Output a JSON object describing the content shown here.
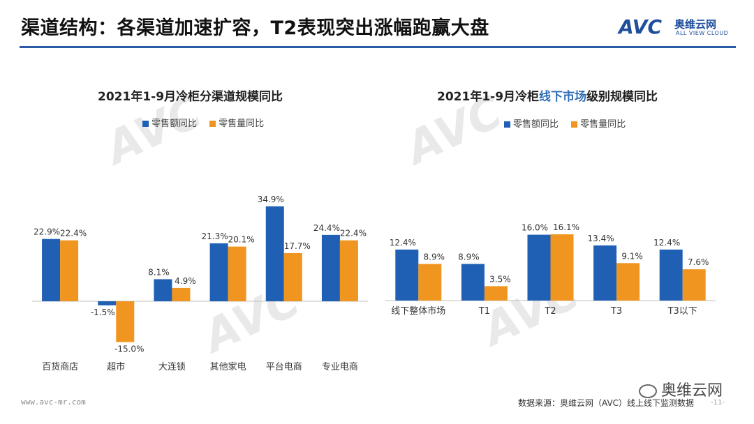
{
  "header": {
    "title": "渠道结构：各渠道加速扩容，T2表现突出涨幅跑赢大盘",
    "brand_avc": "AVC",
    "brand_cn": "奥维云网",
    "brand_en": "ALL VIEW CLOUD"
  },
  "footer": {
    "url": "www.avc-mr.com",
    "source": "数据来源：奥维云网（AVC）线上线下监测数据",
    "wechat": "奥维云网",
    "page": "-11-"
  },
  "colors": {
    "blue": "#1f5fb4",
    "orange": "#f0951f",
    "accent": "#2b5aa6"
  },
  "chart_data": [
    {
      "type": "bar",
      "title": "2021年1-9月冷柜分渠道规模同比",
      "title_parts": [
        "2021年1-9月冷柜分渠道规模同比"
      ],
      "categories": [
        "百货商店",
        "超市",
        "大连锁",
        "其他家电",
        "平台电商",
        "专业电商"
      ],
      "series": [
        {
          "name": "零售额同比",
          "values": [
            22.9,
            -1.5,
            8.1,
            21.3,
            34.9,
            24.4
          ]
        },
        {
          "name": "零售量同比",
          "values": [
            22.4,
            -15.0,
            4.9,
            20.1,
            17.7,
            22.4
          ]
        }
      ],
      "unit": "%",
      "legend": "top"
    },
    {
      "type": "bar",
      "title": "2021年1-9月冷柜线下市场级别规模同比",
      "title_parts": [
        "2021年1-9月冷柜",
        "线下市场",
        "级别规模同比"
      ],
      "categories": [
        "线下整体市场",
        "T1",
        "T2",
        "T3",
        "T3以下"
      ],
      "series": [
        {
          "name": "零售额同比",
          "values": [
            12.4,
            8.9,
            16.0,
            13.4,
            12.4
          ]
        },
        {
          "name": "零售量同比",
          "values": [
            8.9,
            3.5,
            16.1,
            9.1,
            7.6
          ]
        }
      ],
      "unit": "%",
      "legend": "top"
    }
  ]
}
